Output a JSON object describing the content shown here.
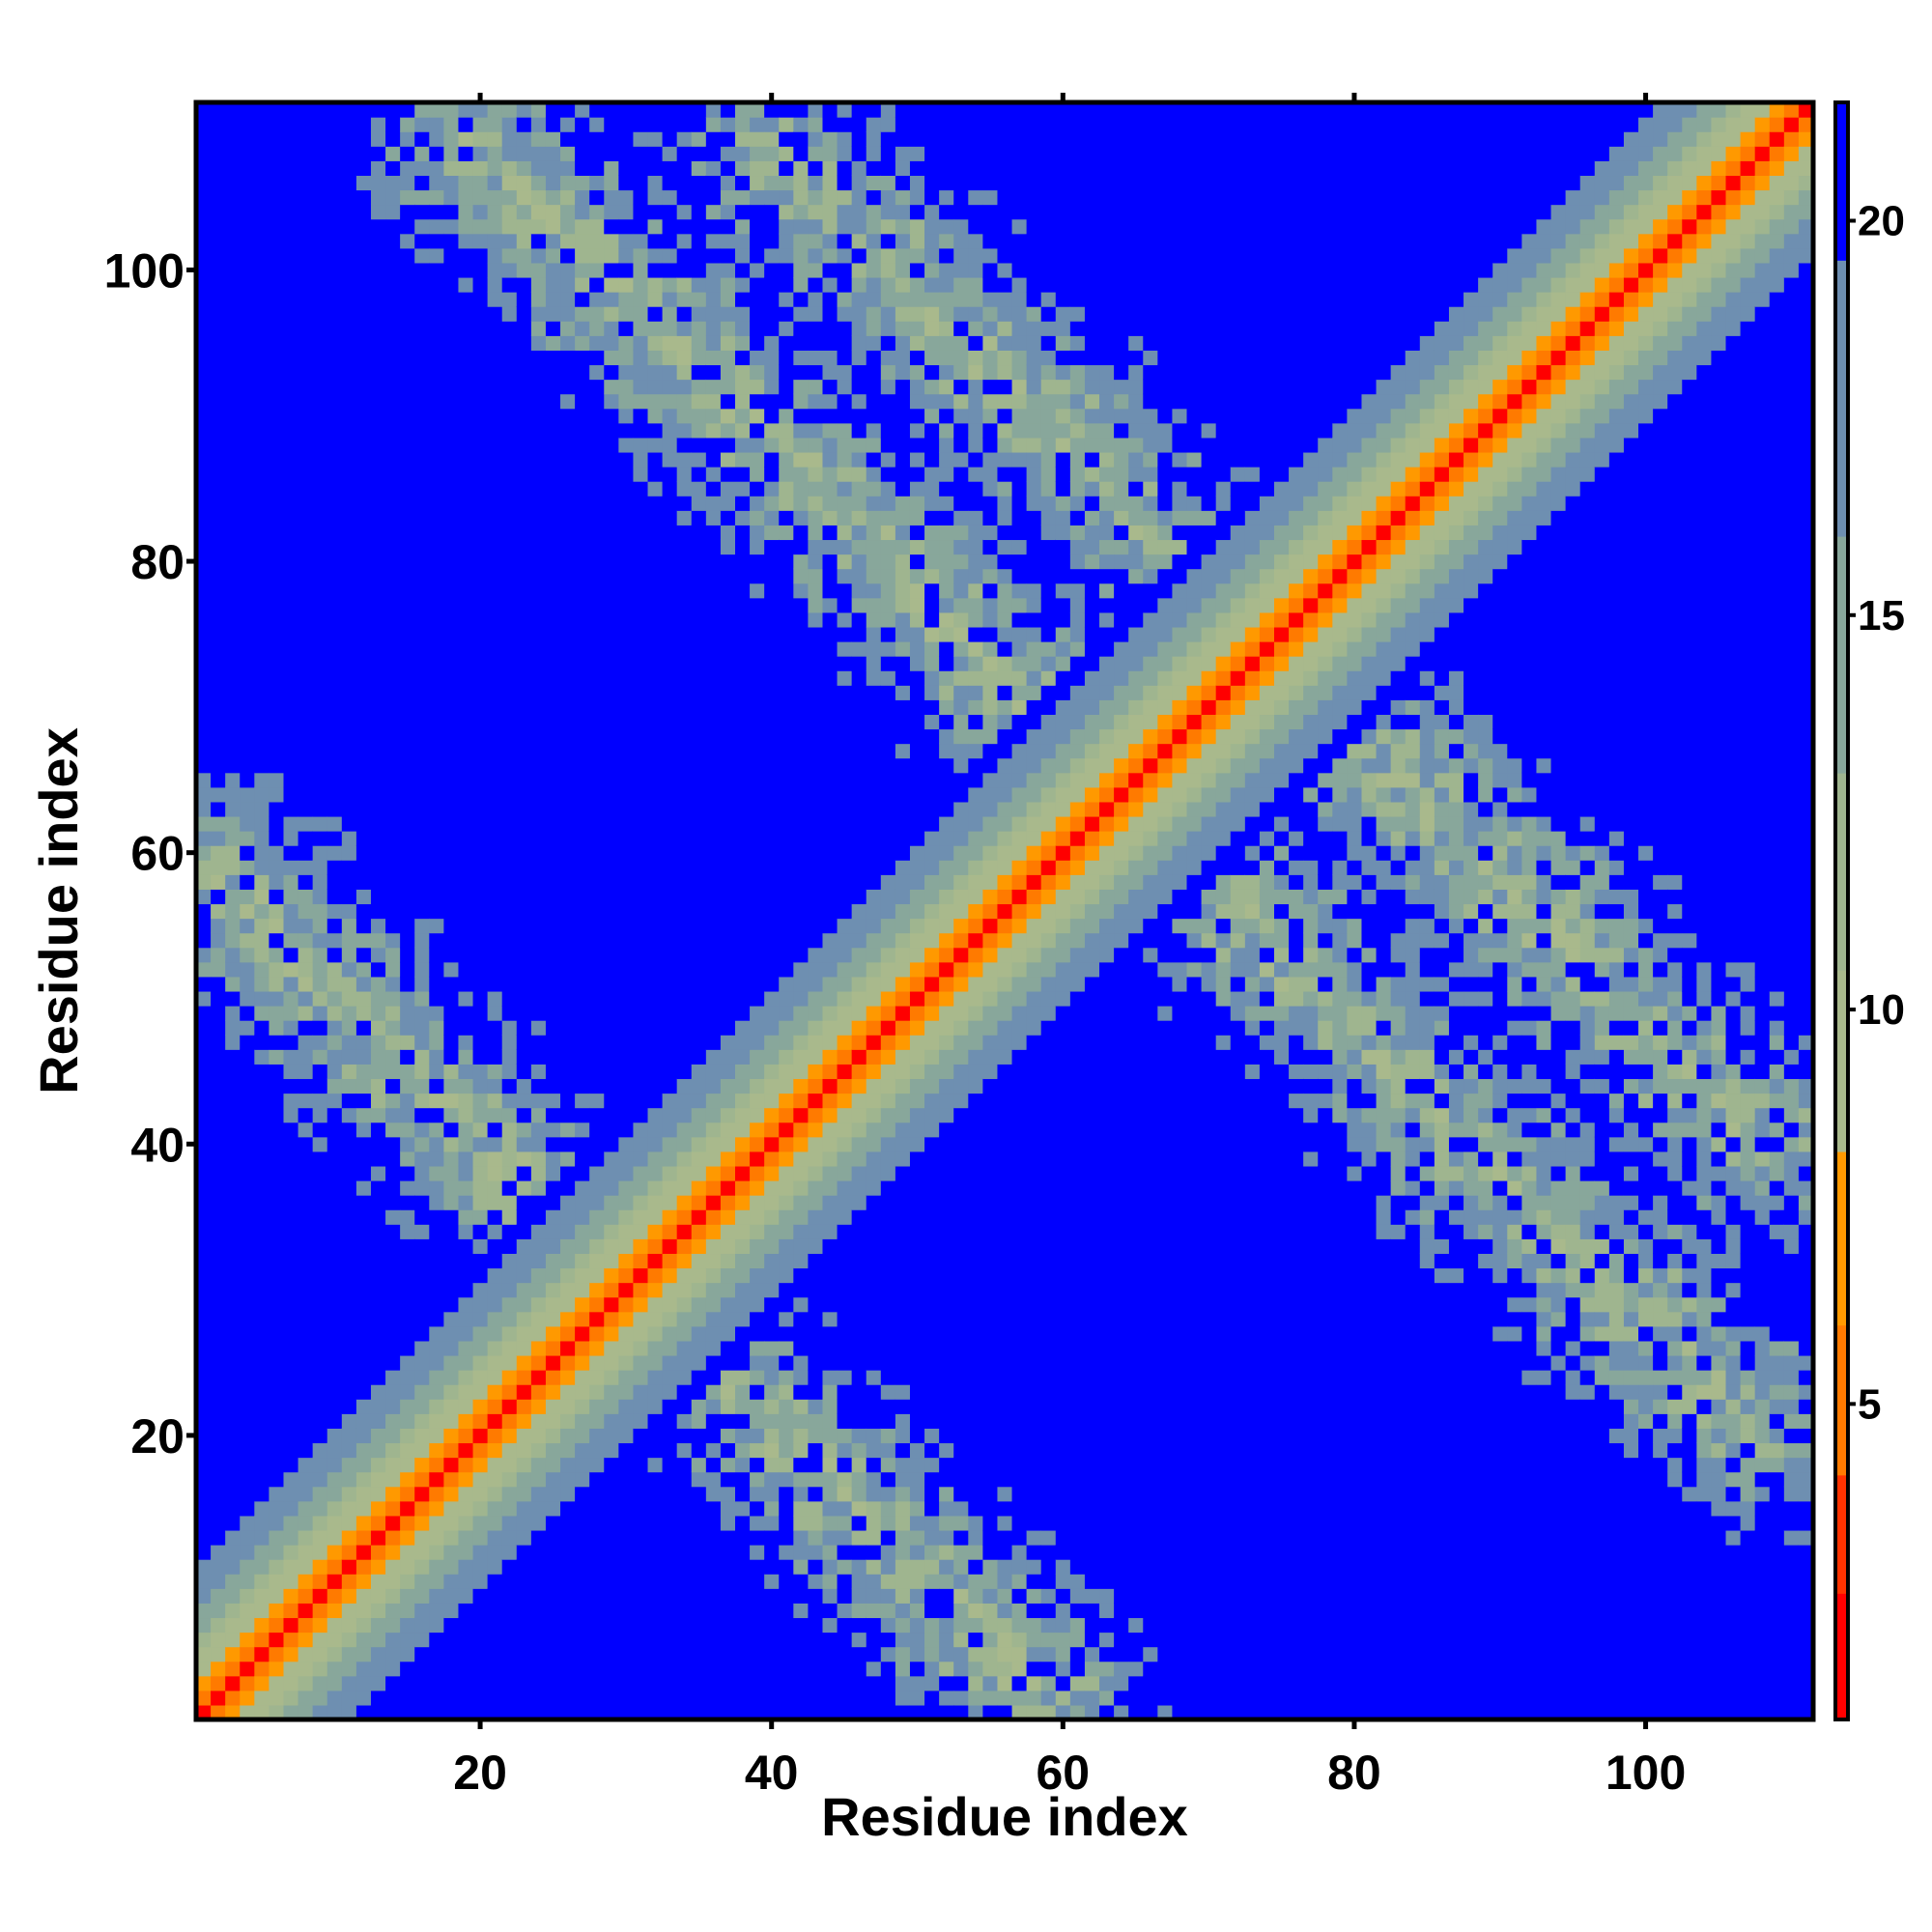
{
  "chart_data": {
    "type": "heatmap",
    "title": "",
    "xlabel": "Residue index",
    "ylabel": "Residue index",
    "n_residues": 111,
    "xlim": [
      1,
      111
    ],
    "ylim": [
      1,
      111
    ],
    "x_ticks": [
      20,
      40,
      60,
      80,
      100
    ],
    "y_ticks": [
      20,
      40,
      60,
      80,
      100
    ],
    "colorbar": {
      "range": [
        1,
        21.5
      ],
      "ticks": [
        5,
        10,
        15,
        20
      ],
      "colors": [
        {
          "max": 2.6,
          "color": "#ff0000"
        },
        {
          "max": 4.1,
          "color": "#ff3300"
        },
        {
          "max": 6.0,
          "color": "#ff7a00"
        },
        {
          "max": 8.2,
          "color": "#ff9900"
        },
        {
          "max": 10.5,
          "color": "#a9b98c"
        },
        {
          "max": 13.0,
          "color": "#9fb58f"
        },
        {
          "max": 16.0,
          "color": "#88a79b"
        },
        {
          "max": 19.5,
          "color": "#6e8fb1"
        },
        {
          "max": 21.5,
          "color": "#0000ff"
        }
      ]
    },
    "structure": {
      "diagonal": "distance grows with |i-j|: red band near diagonal, orange edges, green-gray halo out to ~|i-j| = 12",
      "contact_bands": [
        {
          "from": [
            2,
            58
          ],
          "to": [
            59,
            2
          ],
          "note": "antiparallel contacts"
        },
        {
          "from": [
            20,
            108
          ],
          "to": [
            108,
            20
          ],
          "note": "antiparallel contacts"
        },
        {
          "from": [
            40,
            108
          ],
          "to": [
            108,
            40
          ],
          "note": "antiparallel contacts"
        }
      ]
    }
  }
}
